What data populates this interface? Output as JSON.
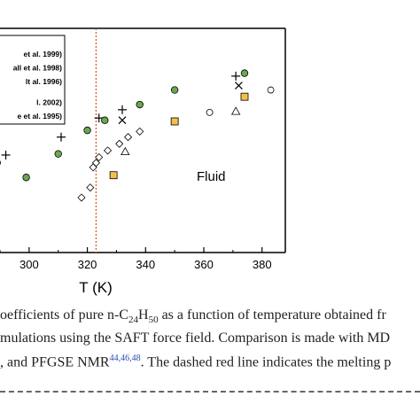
{
  "chart_data": {
    "type": "scatter",
    "title": "",
    "xlabel": "T (K)",
    "ylabel": "",
    "xlim": [
      290,
      388
    ],
    "ylim": [
      0,
      1
    ],
    "x_ticks": [
      "300",
      "320",
      "340",
      "360",
      "380"
    ],
    "grid": false,
    "legend_placement": "top-left",
    "legend_entries": [
      "et al. 1999)",
      "all et al. 1998)",
      "lt al. 1996)",
      "l. 2002)",
      "e et al. 1995)"
    ],
    "melting_point_line_x": 323,
    "annotation": "Fluid",
    "series": [
      {
        "marker": "plus",
        "points": [
          [
            292,
            0.435
          ],
          [
            311,
            0.515
          ],
          [
            324,
            0.6
          ],
          [
            332,
            0.637
          ],
          [
            371,
            0.787
          ]
        ]
      },
      {
        "marker": "circle_green",
        "points": [
          [
            289,
            0.4
          ],
          [
            299,
            0.335
          ],
          [
            310,
            0.44
          ],
          [
            320,
            0.545
          ],
          [
            326,
            0.59
          ],
          [
            338,
            0.66
          ],
          [
            350,
            0.725
          ],
          [
            374,
            0.8
          ]
        ]
      },
      {
        "marker": "cross",
        "points": [
          [
            332,
            0.59
          ],
          [
            372,
            0.745
          ]
        ]
      },
      {
        "marker": "square_orange",
        "points": [
          [
            329,
            0.345
          ],
          [
            350,
            0.585
          ],
          [
            374,
            0.695
          ]
        ]
      },
      {
        "marker": "circle_open",
        "points": [
          [
            362,
            0.625
          ],
          [
            383,
            0.725
          ]
        ]
      },
      {
        "marker": "triangle",
        "points": [
          [
            333,
            0.45
          ],
          [
            371,
            0.63
          ]
        ]
      },
      {
        "marker": "diamond",
        "points": [
          [
            318,
            0.245
          ],
          [
            321,
            0.29
          ],
          [
            322,
            0.38
          ],
          [
            323,
            0.4
          ],
          [
            324,
            0.425
          ],
          [
            327,
            0.455
          ],
          [
            331,
            0.485
          ],
          [
            334,
            0.515
          ],
          [
            338,
            0.54
          ]
        ]
      }
    ]
  },
  "caption": {
    "line1_a": "oefficients of pure n-C",
    "line1_sub1": "24",
    "line1_b": "H",
    "line1_sub2": "50",
    "line1_c": " as a function of temperature obtained fr",
    "line2": "mulations using the SAFT force field. Comparison is made with MD",
    "line3_a": ", and PFGSE NMR",
    "line3_refs": "44,46,48",
    "line3_b": ". The dashed red line indicates the melting p"
  },
  "colors": {
    "axis": "#000000",
    "green_fill": "#6aa84f",
    "orange_fill": "#f4c04a",
    "melting_line": "#e2532d",
    "ref_link": "#2a4fb5"
  }
}
